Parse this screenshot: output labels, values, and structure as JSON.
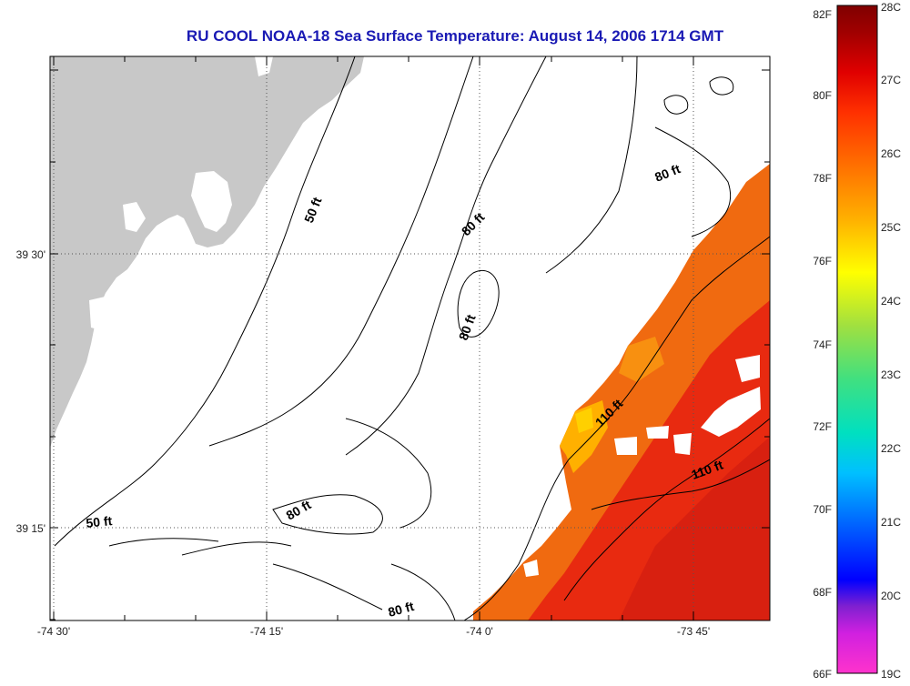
{
  "title": "RU COOL  NOAA-18  Sea Surface Temperature:  August 14, 2006 1714 GMT",
  "axes": {
    "x_ticks": [
      "-74 30'",
      "-74 15'",
      "-74 0'",
      "-73 45'"
    ],
    "y_ticks": [
      "39 30'",
      "39 15'"
    ]
  },
  "contour_labels": [
    "50 ft",
    "80 ft",
    "80 ft",
    "80 ft",
    "50 ft",
    "80 ft",
    "80 ft",
    "110 ft",
    "110 ft"
  ],
  "colorbar": {
    "f_labels": [
      "82F",
      "80F",
      "78F",
      "76F",
      "74F",
      "72F",
      "70F",
      "68F",
      "66F"
    ],
    "c_labels": [
      "28C",
      "27C",
      "26C",
      "25C",
      "24C",
      "23C",
      "22C",
      "21C",
      "20C",
      "19C"
    ],
    "colors": [
      "#ff33cc",
      "#8020d0",
      "#0000ff",
      "#0060ff",
      "#00c0ff",
      "#00e0c0",
      "#40e080",
      "#a0e040",
      "#ffff00",
      "#ffb000",
      "#ff7000",
      "#ff3000",
      "#e00000",
      "#a00000",
      "#800000"
    ]
  },
  "colors": {
    "land": "#c8c8c8",
    "title": "#1a1ab4",
    "sst_warm": "#e82a10",
    "sst_mid": "#f06a10",
    "sst_cool": "#ffc000"
  }
}
